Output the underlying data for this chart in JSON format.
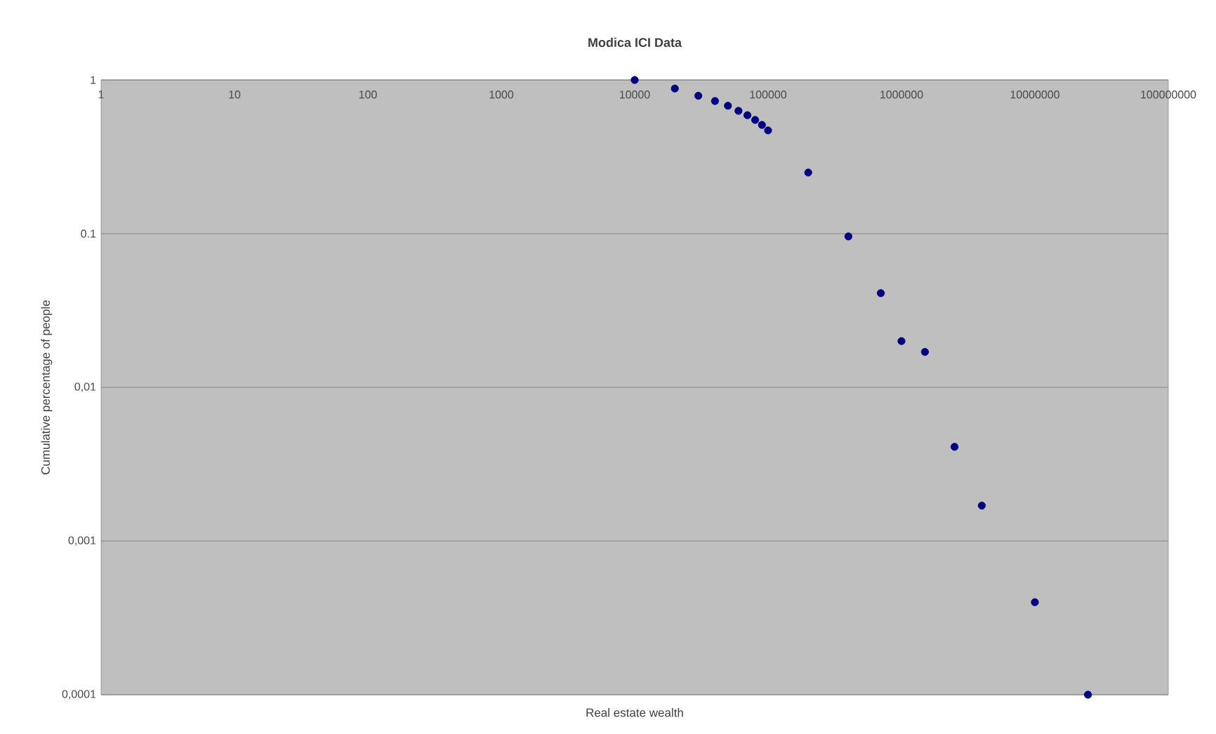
{
  "chart_data": {
    "type": "scatter",
    "title": "Modica ICI Data",
    "xlabel": "Real estate wealth",
    "ylabel": "Cumulative percentage of people",
    "log": "xy",
    "grid": "y",
    "marker": "circle",
    "x": [
      10000,
      20000,
      30000,
      40000,
      50000,
      60000,
      70000,
      80000,
      90000,
      100000,
      200000,
      400000,
      700000,
      1000000,
      1500000,
      2500000,
      4000000,
      10000000,
      25000000
    ],
    "series": [
      {
        "color": "#000080",
        "values": [
          1,
          0.88,
          0.79,
          0.73,
          0.68,
          0.63,
          0.59,
          0.55,
          0.51,
          0.47,
          0.25,
          0.096,
          0.041,
          0.02,
          0.017,
          0.0041,
          0.0017,
          0.0004,
          0.0001
        ]
      }
    ],
    "xlim": [
      1,
      100000000
    ],
    "ylim": [
      0.0001,
      1
    ],
    "xticks": [
      1,
      10,
      100,
      1000,
      10000,
      100000,
      1000000,
      10000000,
      100000000
    ],
    "yticks": [
      1,
      0.1,
      {
        "value": 0.01,
        "label": "0,01"
      },
      {
        "value": 0.001,
        "label": "0,001"
      },
      {
        "value": 0.0001,
        "label": "0,0001"
      }
    ]
  }
}
